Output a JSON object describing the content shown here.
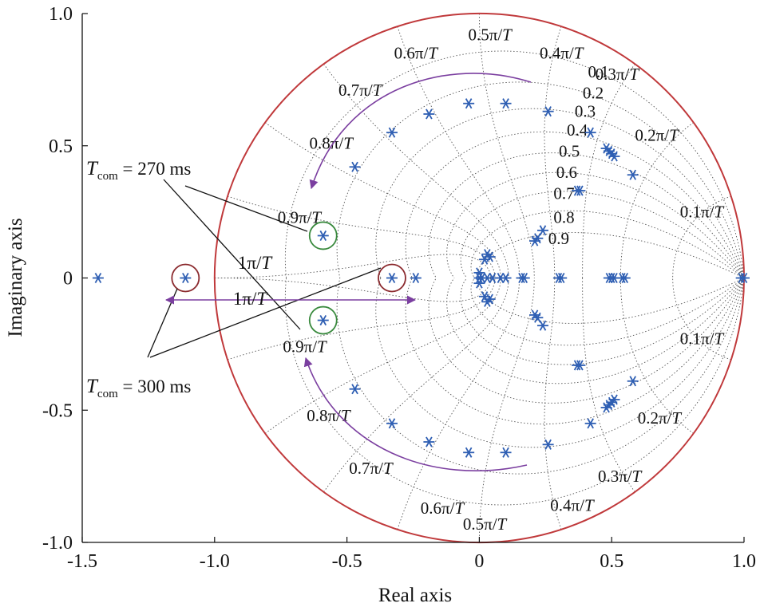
{
  "chart_data": {
    "type": "scatter",
    "plot": "z-plane pole-zero map",
    "xlabel": "Real axis",
    "ylabel": "Imaginary axis",
    "xlim": [
      -1.5,
      1.0
    ],
    "ylim": [
      -1.0,
      1.0
    ],
    "x_ticks": [
      "-1.5",
      "-1.0",
      "-0.5",
      "0",
      "0.5",
      "1.0"
    ],
    "y_ticks": [
      "1.0",
      "0.5",
      "0",
      "-0.5",
      "-1.0"
    ],
    "x_tick_values": [
      -1.5,
      -1.0,
      -0.5,
      0,
      0.5,
      1.0
    ],
    "y_tick_values": [
      1.0,
      0.5,
      0,
      -0.5,
      -1.0
    ],
    "grid": true,
    "unit_circle_color": "#c0393b",
    "marker_color": "#2f5fb3",
    "marker": "asterisk",
    "damping_grid": {
      "zeta": [
        0.1,
        0.2,
        0.3,
        0.4,
        0.5,
        0.6,
        0.7,
        0.8,
        0.9
      ],
      "labels": [
        "0.1",
        "0.2",
        "0.3",
        "0.4",
        "0.5",
        "0.6",
        "0.7",
        "0.8",
        "0.9"
      ]
    },
    "frequency_grid": {
      "wn_fraction_of_pi": [
        0.1,
        0.2,
        0.3,
        0.4,
        0.5,
        0.6,
        0.7,
        0.8,
        0.9,
        1.0
      ],
      "upper_labels": [
        "0.1π/T",
        "0.2π/T",
        "0.3π/T",
        "0.4π/T",
        "0.5π/T",
        "0.6π/T",
        "0.7π/T",
        "0.8π/T",
        "0.9π/T",
        "1π/T"
      ],
      "lower_labels": [
        "0.1π/T",
        "0.2π/T",
        "0.3π/T",
        "0.4π/T",
        "0.5π/T",
        "0.6π/T",
        "0.7π/T",
        "0.8π/T",
        "0.9π/T",
        "1π/T"
      ]
    },
    "poles": [
      {
        "x": -1.44,
        "y": 0
      },
      {
        "x": -1.11,
        "y": 0
      },
      {
        "x": -0.33,
        "y": 0
      },
      {
        "x": -0.24,
        "y": 0
      },
      {
        "x": -0.59,
        "y": 0.16
      },
      {
        "x": -0.59,
        "y": -0.16
      },
      {
        "x": -0.47,
        "y": 0.42
      },
      {
        "x": -0.47,
        "y": -0.42
      },
      {
        "x": -0.33,
        "y": 0.55
      },
      {
        "x": -0.33,
        "y": -0.55
      },
      {
        "x": -0.19,
        "y": 0.62
      },
      {
        "x": -0.19,
        "y": -0.62
      },
      {
        "x": -0.04,
        "y": 0.66
      },
      {
        "x": -0.04,
        "y": -0.66
      },
      {
        "x": 0.1,
        "y": 0.66
      },
      {
        "x": 0.1,
        "y": -0.66
      },
      {
        "x": 0.26,
        "y": 0.63
      },
      {
        "x": 0.26,
        "y": -0.63
      },
      {
        "x": 0.42,
        "y": 0.55
      },
      {
        "x": 0.42,
        "y": -0.55
      },
      {
        "x": 0.58,
        "y": 0.39
      },
      {
        "x": 0.58,
        "y": -0.39
      },
      {
        "x": 0.48,
        "y": 0.49
      },
      {
        "x": 0.48,
        "y": -0.49
      },
      {
        "x": 0.49,
        "y": 0.48
      },
      {
        "x": 0.49,
        "y": -0.48
      },
      {
        "x": 0.5,
        "y": 0.47
      },
      {
        "x": 0.5,
        "y": -0.47
      },
      {
        "x": 0.51,
        "y": 0.46
      },
      {
        "x": 0.51,
        "y": -0.46
      },
      {
        "x": 0.38,
        "y": 0.33
      },
      {
        "x": 0.38,
        "y": -0.33
      },
      {
        "x": 0.37,
        "y": 0.33
      },
      {
        "x": 0.37,
        "y": -0.33
      },
      {
        "x": 0.24,
        "y": 0.18
      },
      {
        "x": 0.24,
        "y": -0.18
      },
      {
        "x": 0.21,
        "y": 0.14
      },
      {
        "x": 0.21,
        "y": -0.14
      },
      {
        "x": 0.22,
        "y": 0.15
      },
      {
        "x": 0.22,
        "y": -0.15
      },
      {
        "x": 0.03,
        "y": 0.09
      },
      {
        "x": 0.03,
        "y": -0.09
      },
      {
        "x": 0.02,
        "y": 0.07
      },
      {
        "x": 0.02,
        "y": -0.07
      },
      {
        "x": 0.04,
        "y": 0.08
      },
      {
        "x": 0.04,
        "y": -0.08
      },
      {
        "x": 0.0,
        "y": 0.02
      },
      {
        "x": 0.0,
        "y": -0.02
      },
      {
        "x": 0.0,
        "y": 0.0
      },
      {
        "x": 0.01,
        "y": 0.0
      },
      {
        "x": 0.03,
        "y": 0.0
      },
      {
        "x": 0.05,
        "y": 0.0
      },
      {
        "x": 0.08,
        "y": 0.0
      },
      {
        "x": 0.1,
        "y": 0.0
      },
      {
        "x": 0.16,
        "y": 0.0
      },
      {
        "x": 0.17,
        "y": 0.0
      },
      {
        "x": 0.3,
        "y": 0.0
      },
      {
        "x": 0.31,
        "y": 0.0
      },
      {
        "x": 0.49,
        "y": 0.0
      },
      {
        "x": 0.5,
        "y": 0.0
      },
      {
        "x": 0.51,
        "y": 0.0
      },
      {
        "x": 0.54,
        "y": 0.0
      },
      {
        "x": 0.55,
        "y": 0.0
      },
      {
        "x": 1.0,
        "y": 0.0
      },
      {
        "x": 0.99,
        "y": 0.0
      }
    ],
    "highlighted_poles": [
      {
        "group": "270",
        "x": -0.59,
        "y": 0.16,
        "color": "#3a8a3e"
      },
      {
        "group": "270",
        "x": -0.59,
        "y": -0.16,
        "color": "#3a8a3e"
      },
      {
        "group": "300",
        "x": -1.11,
        "y": 0,
        "color": "#8b2a2e"
      },
      {
        "group": "300",
        "x": -0.33,
        "y": 0,
        "color": "#8b2a2e"
      }
    ],
    "annotations": {
      "t270": {
        "symbol": "T",
        "subscript": "com",
        "text": " = 270 ms"
      },
      "t300": {
        "symbol": "T",
        "subscript": "com",
        "text": " = 300 ms"
      },
      "one_pi": "1π/T",
      "arrow_color": "#7b3fa0"
    }
  }
}
